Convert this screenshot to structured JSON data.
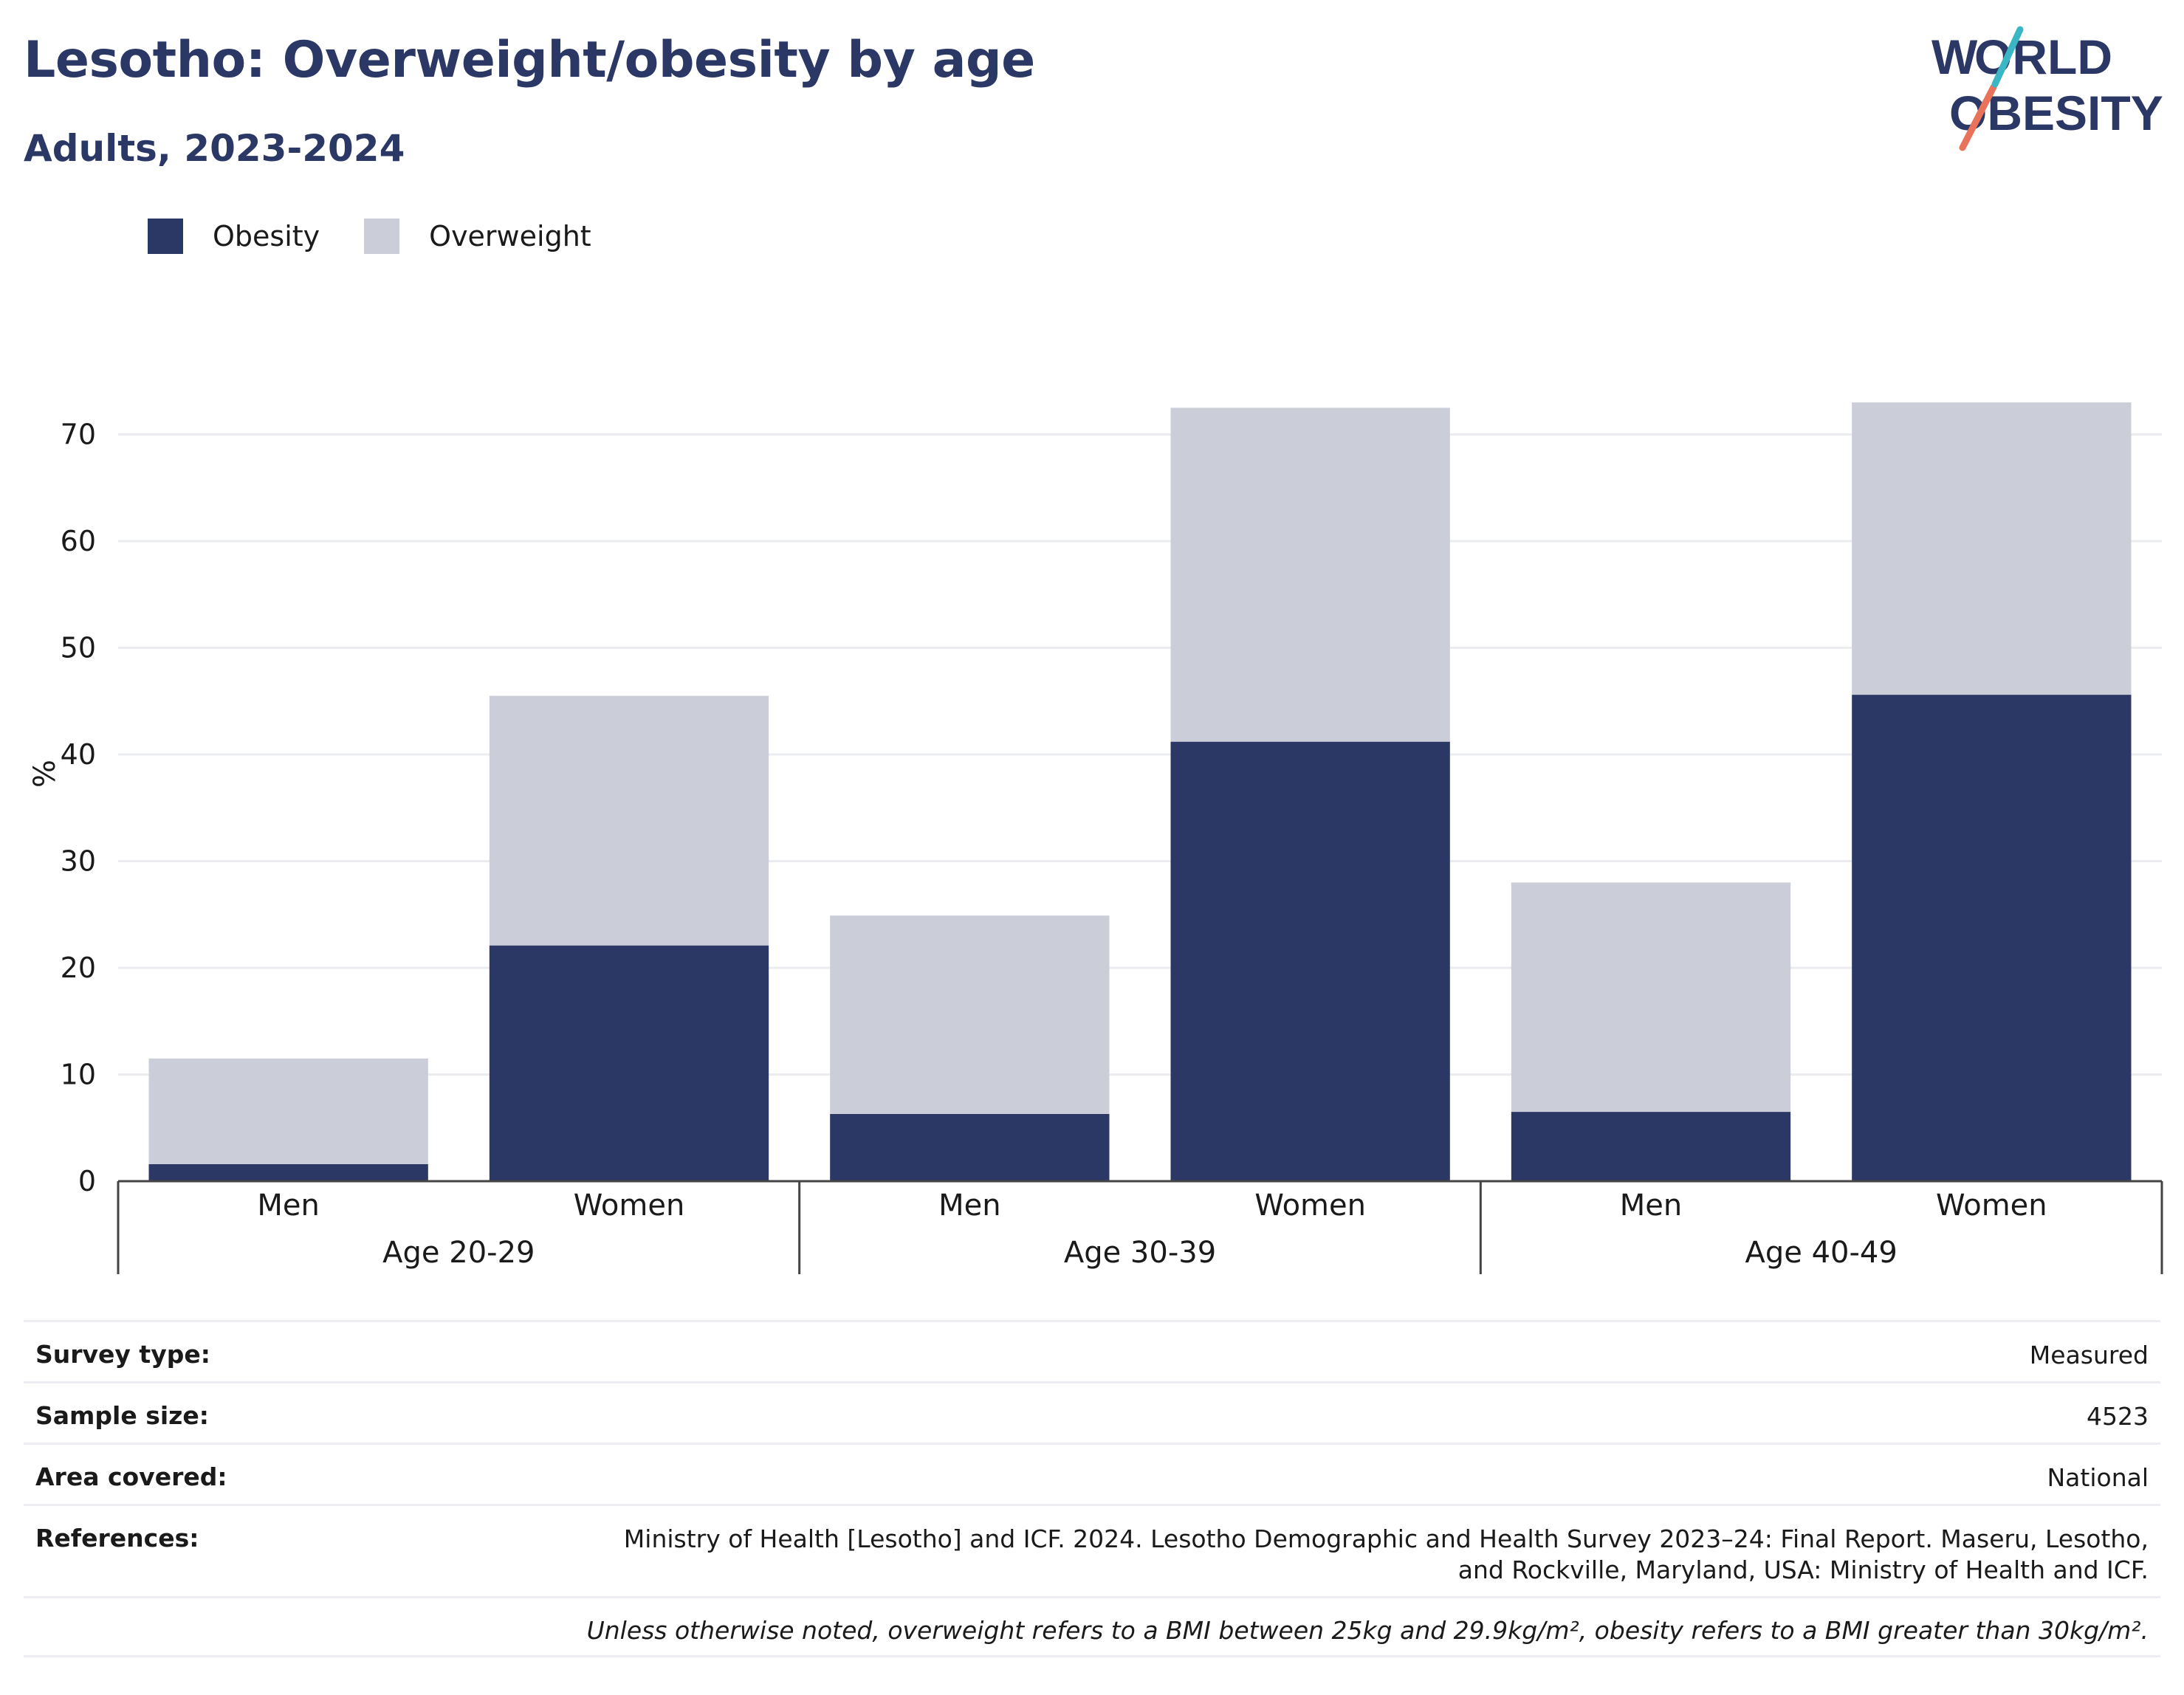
{
  "title": "Lesotho: Overweight/obesity by age",
  "subtitle": "Adults, 2023-2024",
  "logo": {
    "line1": "WORLD",
    "line2": "OBESITY",
    "colors": [
      "#2b3865",
      "#e8725a",
      "#3ab6c4"
    ]
  },
  "legend": [
    {
      "label": "Obesity",
      "color": "#2b3865"
    },
    {
      "label": "Overweight",
      "color": "#cbcdd8"
    }
  ],
  "chart_data": {
    "type": "bar",
    "stacked": true,
    "ylabel": "%",
    "ylim": [
      0,
      75
    ],
    "yticks": [
      0,
      10,
      20,
      30,
      40,
      50,
      60,
      70
    ],
    "grid": true,
    "legend_position": "top-left",
    "groups": [
      "Age 20-29",
      "Age 30-39",
      "Age 40-49"
    ],
    "categories": [
      "Men",
      "Women",
      "Men",
      "Women",
      "Men",
      "Women"
    ],
    "series": [
      {
        "name": "Obesity",
        "color": "#2b3865",
        "values": [
          1.6,
          22.1,
          6.3,
          41.2,
          6.5,
          45.6
        ]
      },
      {
        "name": "Overweight",
        "color": "#cbcdd8",
        "values": [
          9.9,
          23.4,
          18.6,
          31.3,
          21.5,
          27.4
        ]
      }
    ]
  },
  "meta": {
    "survey_type_label": "Survey type:",
    "survey_type": "Measured",
    "sample_size_label": "Sample size:",
    "sample_size": "4523",
    "area_label": "Area covered:",
    "area": "National",
    "references_label": "References:",
    "references": "Ministry of Health [Lesotho] and ICF. 2024. Lesotho Demographic and Health Survey 2023–24: Final Report. Maseru, Lesotho, and Rockville, Maryland, USA: Ministry of Health and ICF.",
    "note": "Unless otherwise noted, overweight refers to a BMI between 25kg and 29.9kg/m², obesity refers to a BMI greater than 30kg/m²."
  }
}
